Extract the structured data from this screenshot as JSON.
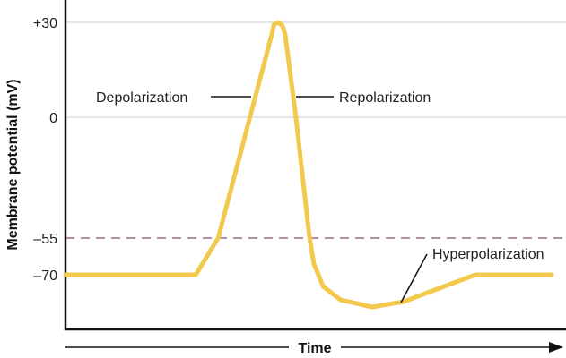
{
  "chart_data": {
    "type": "line",
    "xlabel": "Time",
    "ylabel": "Membrane potential (mV)",
    "y_ticks": [
      {
        "value": 30,
        "label": "+30"
      },
      {
        "value": 0,
        "label": "0"
      },
      {
        "value": -55,
        "label": "–55"
      },
      {
        "value": -70,
        "label": "–70"
      }
    ],
    "gridlines_at": [
      30,
      0
    ],
    "threshold": {
      "value": -55,
      "style": "dashed",
      "color": "#9c6b8c"
    },
    "series": [
      {
        "color": "#f2c94c",
        "points": [
          [
            0,
            -70
          ],
          [
            26.8,
            -70
          ],
          [
            31.4,
            -55
          ],
          [
            42.4,
            26
          ],
          [
            42.9,
            29.3
          ],
          [
            43.7,
            30
          ],
          [
            44.6,
            29
          ],
          [
            45.2,
            26
          ],
          [
            47.4,
            0
          ],
          [
            50.2,
            -55
          ],
          [
            51.1,
            -65.6
          ],
          [
            53,
            -74.8
          ],
          [
            56.6,
            -80.3
          ],
          [
            63.1,
            -83.2
          ],
          [
            69.6,
            -81
          ],
          [
            76.9,
            -75.5
          ],
          [
            84.3,
            -70
          ],
          [
            100,
            -70
          ]
        ]
      }
    ],
    "annotations": [
      {
        "text": "Depolarization",
        "at": [
          38.5,
          7
        ]
      },
      {
        "text": "Repolarization",
        "at": [
          47.1,
          7
        ]
      },
      {
        "text": "Hyperpolarization",
        "at": [
          69,
          -82
        ]
      }
    ]
  }
}
